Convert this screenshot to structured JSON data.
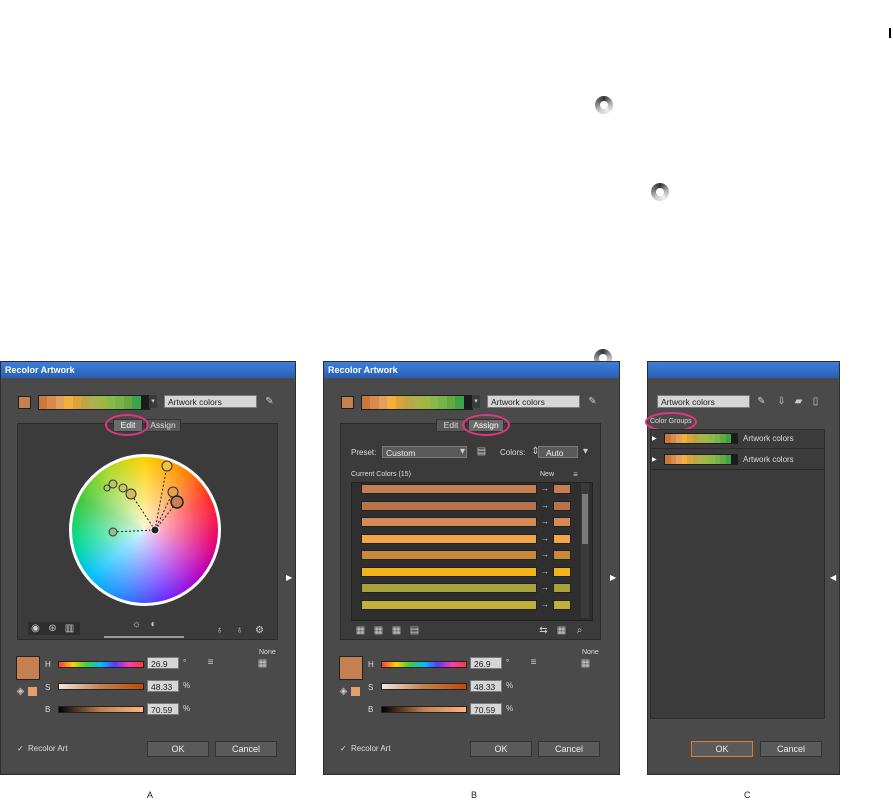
{
  "colors": {
    "accent_ring": "#e2367d",
    "title_bar": "#2a5fb6",
    "dialog_bg": "#4a4a4a",
    "current_color": "#c47f52"
  },
  "strip_colors": [
    "#c9793c",
    "#d98b4e",
    "#e3a05a",
    "#f2b03a",
    "#d9a43b",
    "#c0a545",
    "#a9b24b",
    "#9fb940",
    "#88b94d",
    "#7ab34a",
    "#63aa3f",
    "#3da34a",
    "#1b1b1b"
  ],
  "dialog_a": {
    "title": "Recolor Artwork",
    "group_name": "Artwork colors",
    "tabs": [
      "Edit",
      "Assign"
    ],
    "h_label": "H",
    "h_value": "26.9",
    "h_unit": "°",
    "s_label": "S",
    "s_value": "48.33",
    "s_unit": "%",
    "b_label": "B",
    "b_value": "70.59",
    "b_unit": "%",
    "none_label": "None",
    "recolor_check": "✓",
    "recolor_label": "Recolor Art",
    "ok_label": "OK",
    "cancel_label": "Cancel"
  },
  "dialog_b": {
    "title": "Recolor Artwork",
    "group_name": "Artwork colors",
    "tabs": [
      "Edit",
      "Assign"
    ],
    "preset_label": "Preset:",
    "preset_value": "Custom",
    "colors_label": "Colors:",
    "colors_value": "Auto",
    "current_colors_label": "Current Colors (15)",
    "new_label": "New",
    "rows": [
      {
        "current": "#c47f52",
        "new": "#c47f52"
      },
      {
        "current": "#b7744a",
        "new": "#b7744a"
      },
      {
        "current": "#d68a57",
        "new": "#d68a57"
      },
      {
        "current": "#f0a44c",
        "new": "#f0a44c"
      },
      {
        "current": "#c88a3a",
        "new": "#c88a3a"
      },
      {
        "current": "#f5b31a",
        "new": "#f5b31a"
      },
      {
        "current": "#a6a23e",
        "new": "#a6a23e"
      },
      {
        "current": "#c2b03c",
        "new": "#c2b03c"
      }
    ],
    "h_label": "H",
    "h_value": "26.9",
    "h_unit": "°",
    "s_label": "S",
    "s_value": "48.33",
    "s_unit": "%",
    "b_label": "B",
    "b_value": "70.59",
    "b_unit": "%",
    "none_label": "None",
    "recolor_check": "✓",
    "recolor_label": "Recolor Art",
    "ok_label": "OK",
    "cancel_label": "Cancel"
  },
  "dialog_c": {
    "group_name": "Artwork colors",
    "section_label": "Color Groups",
    "groups": [
      {
        "name": "Artwork colors"
      },
      {
        "name": "Artwork colors"
      }
    ],
    "ok_label": "OK",
    "cancel_label": "Cancel"
  },
  "captions": [
    "A",
    "B",
    "C"
  ]
}
